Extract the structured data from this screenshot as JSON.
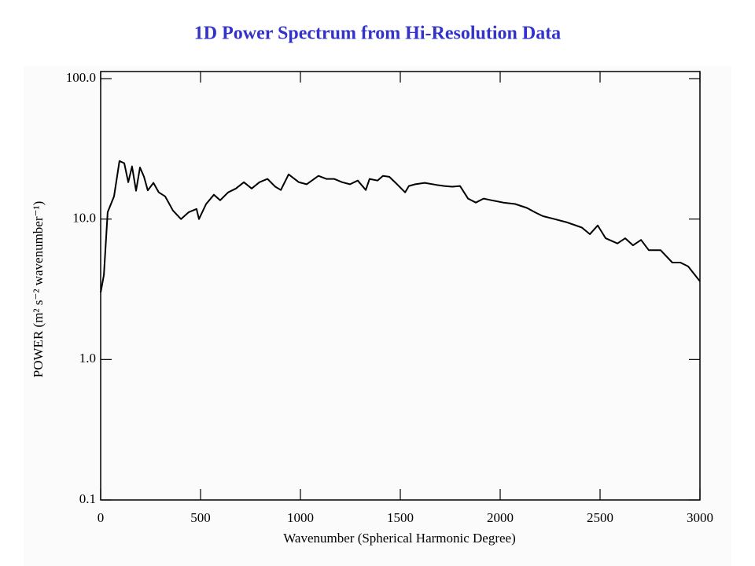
{
  "chart_data": {
    "type": "line",
    "title": "1D Power Spectrum from Hi-Resolution Data",
    "xlabel": "Wavenumber (Spherical Harmonic Degree)",
    "ylabel": "POWER (m² s⁻² wavenumber⁻¹)",
    "log_y": true,
    "xlim": [
      0,
      3000
    ],
    "ylim": [
      0.1,
      100
    ],
    "xticks": [
      0,
      500,
      1000,
      1500,
      2000,
      2500,
      3000
    ],
    "yticks": [
      {
        "value": 0.1,
        "label": "0.1"
      },
      {
        "value": 1,
        "label": "1.0"
      },
      {
        "value": 10,
        "label": "10.0"
      },
      {
        "value": 100,
        "label": "100.0"
      }
    ],
    "series": [
      {
        "color": "#000000",
        "x": [
          0,
          16,
          35,
          67,
          94,
          118,
          138,
          157,
          177,
          197,
          217,
          236,
          264,
          291,
          323,
          362,
          402,
          441,
          480,
          492,
          528,
          567,
          598,
          638,
          677,
          717,
          756,
          795,
          835,
          874,
          902,
          941,
          992,
          1031,
          1090,
          1130,
          1169,
          1209,
          1248,
          1287,
          1327,
          1346,
          1386,
          1413,
          1445,
          1484,
          1524,
          1543,
          1575,
          1622,
          1681,
          1720,
          1760,
          1799,
          1839,
          1878,
          1917,
          1957,
          2016,
          2075,
          2134,
          2173,
          2213,
          2272,
          2331,
          2409,
          2449,
          2488,
          2528,
          2587,
          2626,
          2665,
          2705,
          2744,
          2803,
          2862,
          2902,
          2941,
          3000
        ],
        "values": [
          3.0,
          4.0,
          11.2,
          14.5,
          25.9,
          25,
          18.3,
          23.7,
          15.9,
          23.3,
          20,
          16,
          18.1,
          15.5,
          14.5,
          11.5,
          10,
          11.2,
          11.8,
          10,
          12.8,
          14.9,
          13.6,
          15.5,
          16.5,
          18.3,
          16.5,
          18.3,
          19.3,
          17,
          16.1,
          20.8,
          18.3,
          17.7,
          20.3,
          19.3,
          19.3,
          18.3,
          17.7,
          18.8,
          16.1,
          19.3,
          18.8,
          20.3,
          20,
          17.7,
          15.5,
          17.2,
          17.7,
          18.1,
          17.5,
          17.2,
          17,
          17.2,
          14.0,
          13.1,
          14.0,
          13.6,
          13.1,
          12.8,
          12.0,
          11.2,
          10.5,
          10,
          9.5,
          8.7,
          7.8,
          9.0,
          7.3,
          6.7,
          7.3,
          6.5,
          7.1,
          6.0,
          6.0,
          4.9,
          4.9,
          4.6,
          3.6
        ]
      }
    ]
  }
}
